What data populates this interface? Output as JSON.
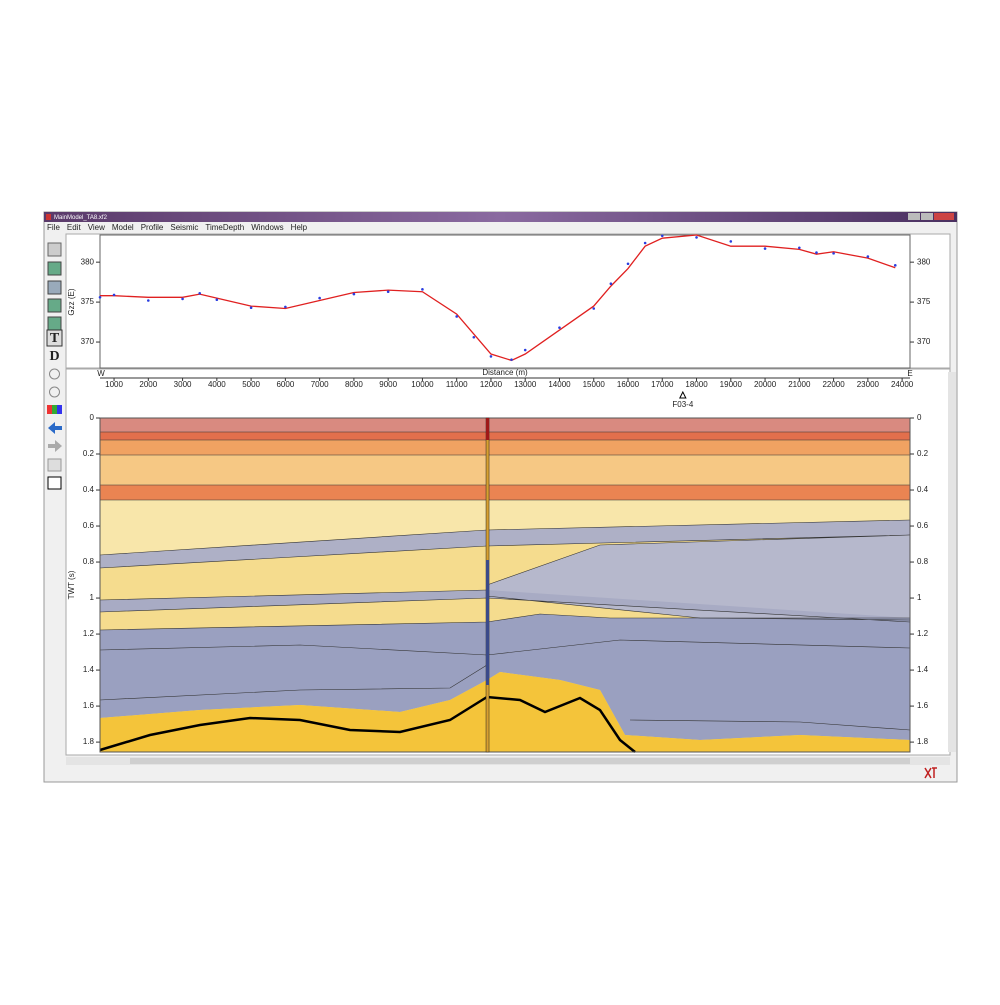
{
  "window": {
    "title": "MainModel_TA8.xf2",
    "menu": [
      "File",
      "Edit",
      "View",
      "Model",
      "Profile",
      "Seismic",
      "TimeDepth",
      "Windows",
      "Help"
    ],
    "tool_labels": [
      "T",
      "D"
    ]
  },
  "chart_data": [
    {
      "type": "line",
      "y_label": "Gzz (E)",
      "x": [
        590,
        1000,
        2000,
        3000,
        3500,
        4000,
        5000,
        6000,
        7000,
        8000,
        9000,
        10000,
        11000,
        11500,
        12000,
        12600,
        13000,
        14000,
        15000,
        15500,
        16000,
        16500,
        17000,
        18000,
        19000,
        20000,
        21000,
        21500,
        22000,
        23000,
        23800
      ],
      "series": [
        {
          "color": "#e02020",
          "marker": "line",
          "values": [
            375.8,
            375.8,
            375.6,
            375.6,
            376,
            375.5,
            374.5,
            374.2,
            375.2,
            376.2,
            376.5,
            376.3,
            373.5,
            371,
            368.5,
            367.7,
            368.5,
            371.5,
            374.5,
            377,
            379.2,
            382,
            383,
            383.4,
            382,
            382,
            381.6,
            381,
            381.3,
            380.5,
            379.3
          ]
        },
        {
          "color": "#2a3ee0",
          "marker": "dots",
          "values": [
            375.6,
            375.9,
            375.2,
            375.4,
            376.1,
            375.3,
            374.3,
            374.4,
            375.5,
            376,
            376.3,
            376.6,
            373.2,
            370.6,
            368.2,
            367.8,
            369,
            371.8,
            374.2,
            377.3,
            379.8,
            382.4,
            383.3,
            383.1,
            382.6,
            381.7,
            381.8,
            381.2,
            381.1,
            380.7,
            379.6
          ]
        }
      ],
      "xlim": [
        590,
        24230
      ],
      "ylim": [
        366.75,
        383.4
      ],
      "yticks": [
        370,
        375,
        380
      ]
    },
    {
      "type": "seismic",
      "x_label": "Distance (m)",
      "y_label": "TWT (s)",
      "left_label": "W",
      "right_label": "E",
      "xlim": [
        590,
        24230
      ],
      "xticks": [
        1000,
        2000,
        3000,
        4000,
        5000,
        6000,
        7000,
        8000,
        9000,
        10000,
        11000,
        12000,
        13000,
        14000,
        15000,
        16000,
        17000,
        18000,
        19000,
        20000,
        21000,
        22000,
        23000,
        24000
      ],
      "ylim": [
        0,
        1.855
      ],
      "yticks": [
        0,
        0.2,
        0.4,
        0.6,
        0.8,
        1,
        1.2,
        1.4,
        1.6,
        1.8
      ],
      "wells": [
        {
          "name": "F03-4",
          "x": 17600
        }
      ],
      "section_line_x": 11900
    }
  ]
}
